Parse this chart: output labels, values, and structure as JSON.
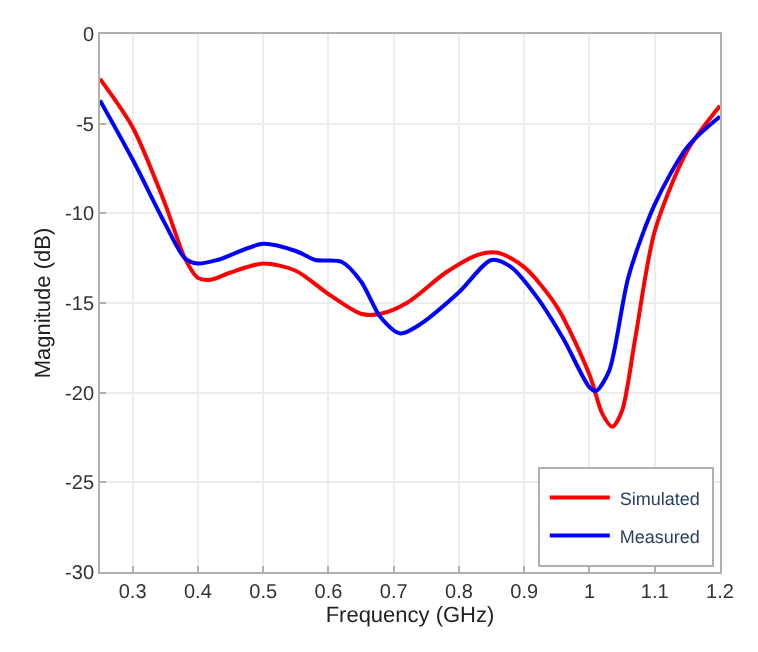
{
  "chart_data": {
    "type": "line",
    "xlabel": "Frequency (GHz)",
    "ylabel": "Magnitude (dB)",
    "xlim": [
      0.25,
      1.2
    ],
    "xticks": [
      0.3,
      0.4,
      0.5,
      0.6,
      0.7,
      0.8,
      0.9,
      {
        "value": 1.0,
        "label": "1"
      },
      1.1,
      1.2
    ],
    "ylim": [
      -30,
      0
    ],
    "yticks": [
      -30,
      -25,
      -20,
      -15,
      -10,
      -5,
      0
    ],
    "grid": true,
    "legend": "bottom right",
    "line_style": "solid",
    "marker": "none",
    "series": [
      {
        "name": "Simulated",
        "color": "#ff0000",
        "x": [
          0.25,
          0.3,
          0.35,
          0.38,
          0.4,
          0.42,
          0.45,
          0.5,
          0.55,
          0.6,
          0.65,
          0.68,
          0.72,
          0.78,
          0.83,
          0.86,
          0.9,
          0.95,
          1.0,
          1.02,
          1.035,
          1.05,
          1.07,
          1.1,
          1.15,
          1.2
        ],
        "values": [
          -2.5,
          -5.2,
          -9.5,
          -12.5,
          -13.6,
          -13.7,
          -13.3,
          -12.8,
          -13.2,
          -14.5,
          -15.6,
          -15.6,
          -15,
          -13.3,
          -12.3,
          -12.2,
          -13,
          -15.2,
          -19,
          -21.2,
          -21.9,
          -21,
          -17,
          -11,
          -6.5,
          -4.0
        ]
      },
      {
        "name": "Measured",
        "color": "#0000ff",
        "x": [
          0.25,
          0.3,
          0.35,
          0.38,
          0.4,
          0.43,
          0.5,
          0.55,
          0.58,
          0.62,
          0.65,
          0.68,
          0.71,
          0.74,
          0.8,
          0.85,
          0.88,
          0.92,
          0.96,
          1.0,
          1.01,
          1.03,
          1.06,
          1.1,
          1.15,
          1.2
        ],
        "values": [
          -3.7,
          -7,
          -10.6,
          -12.5,
          -12.8,
          -12.6,
          -11.7,
          -12.1,
          -12.6,
          -12.7,
          -13.8,
          -15.8,
          -16.7,
          -16.2,
          -14.4,
          -12.6,
          -13,
          -14.7,
          -17,
          -19.7,
          -19.9,
          -18.8,
          -13.5,
          -9.5,
          -6.3,
          -4.6
        ]
      }
    ]
  }
}
